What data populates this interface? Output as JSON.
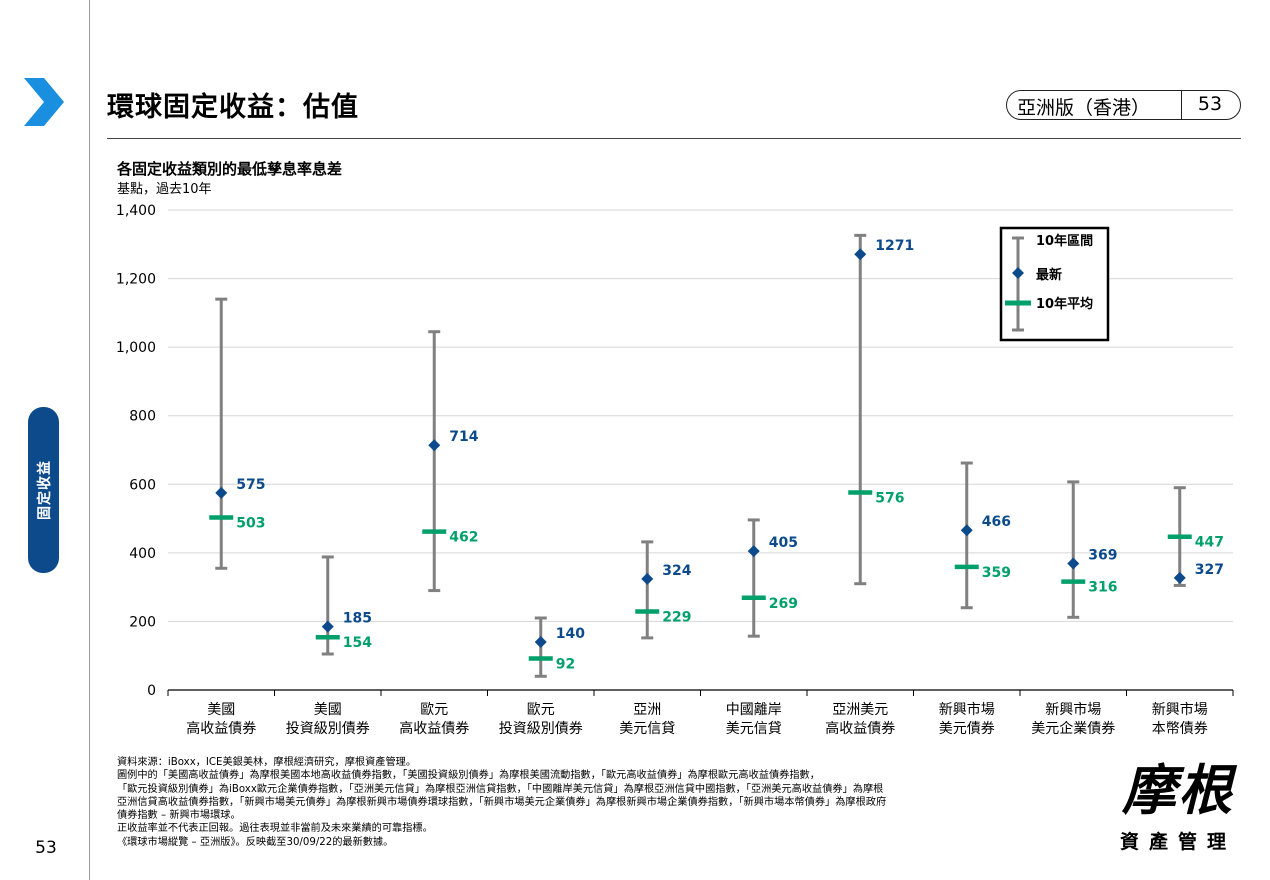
{
  "header": {
    "title": "環球固定收益：估值",
    "edition": "亞洲版（香港）",
    "page_number": "53"
  },
  "sidebar": {
    "section_label": "固定收益",
    "page_number": "53"
  },
  "chart_data": {
    "type": "range",
    "title": "各固定收益類別的最低孳息率息差",
    "subtitle": "基點，過去10年",
    "ylim": [
      0,
      1400
    ],
    "yticks": [
      0,
      200,
      400,
      600,
      800,
      1000,
      1200,
      1400
    ],
    "ytick_labels": [
      "0",
      "200",
      "400",
      "600",
      "800",
      "1,000",
      "1,200",
      "1,400"
    ],
    "grid": true,
    "legend_position": "top-right",
    "legend": {
      "range": "10年區間",
      "latest": "最新",
      "average": "10年平均"
    },
    "colors": {
      "range": "#808080",
      "latest": "#0d4a8c",
      "average": "#00a06b"
    },
    "categories": [
      [
        "美國",
        "高收益債券"
      ],
      [
        "美國",
        "投資級別債券"
      ],
      [
        "歐元",
        "高收益債券"
      ],
      [
        "歐元",
        "投資級別債券"
      ],
      [
        "亞洲",
        "美元信貸"
      ],
      [
        "中國離岸",
        "美元信貸"
      ],
      [
        "亞洲美元",
        "高收益債券"
      ],
      [
        "新興市場",
        "美元債券"
      ],
      [
        "新興市場",
        "美元企業債券"
      ],
      [
        "新興市場",
        "本幣債券"
      ]
    ],
    "range_low": [
      355,
      105,
      290,
      40,
      152,
      157,
      310,
      240,
      212,
      305
    ],
    "range_high": [
      1140,
      388,
      1045,
      210,
      432,
      496,
      1326,
      662,
      607,
      590
    ],
    "latest": [
      575,
      185,
      714,
      140,
      324,
      405,
      1271,
      466,
      369,
      327
    ],
    "average": [
      503,
      154,
      462,
      92,
      229,
      269,
      576,
      359,
      316,
      447
    ]
  },
  "footnotes": [
    "資料來源：iBoxx，ICE美銀美林，摩根經濟研究，摩根資產管理。",
    "圖例中的「美國高收益債券」為摩根美國本地高收益債券指數，「美國投資級別債券」為摩根美國流動指數，「歐元高收益債券」為摩根歐元高收益債券指數，",
    "「歐元投資級別債券」為iBoxx歐元企業債券指數，「亞洲美元信貸」為摩根亞洲信貸指數，「中國離岸美元信貸」為摩根亞洲信貸中國指數，「亞洲美元高收益債券」為摩根",
    "亞洲信貸高收益債券指數，「新興市場美元債券」為摩根新興市場債券環球指數，「新興市場美元企業債券」為摩根新興市場企業債券指數，「新興市場本幣債券」為摩根政府",
    "債券指數 – 新興市場環球。",
    "正收益率並不代表正回報。過往表現並非當前及未來業績的可靠指標。",
    "《環球市場縱覽 – 亞洲版》。反映截至30/09/22的最新數據。"
  ],
  "logo": {
    "name_big": "摩根",
    "name_small": "資產管理"
  }
}
